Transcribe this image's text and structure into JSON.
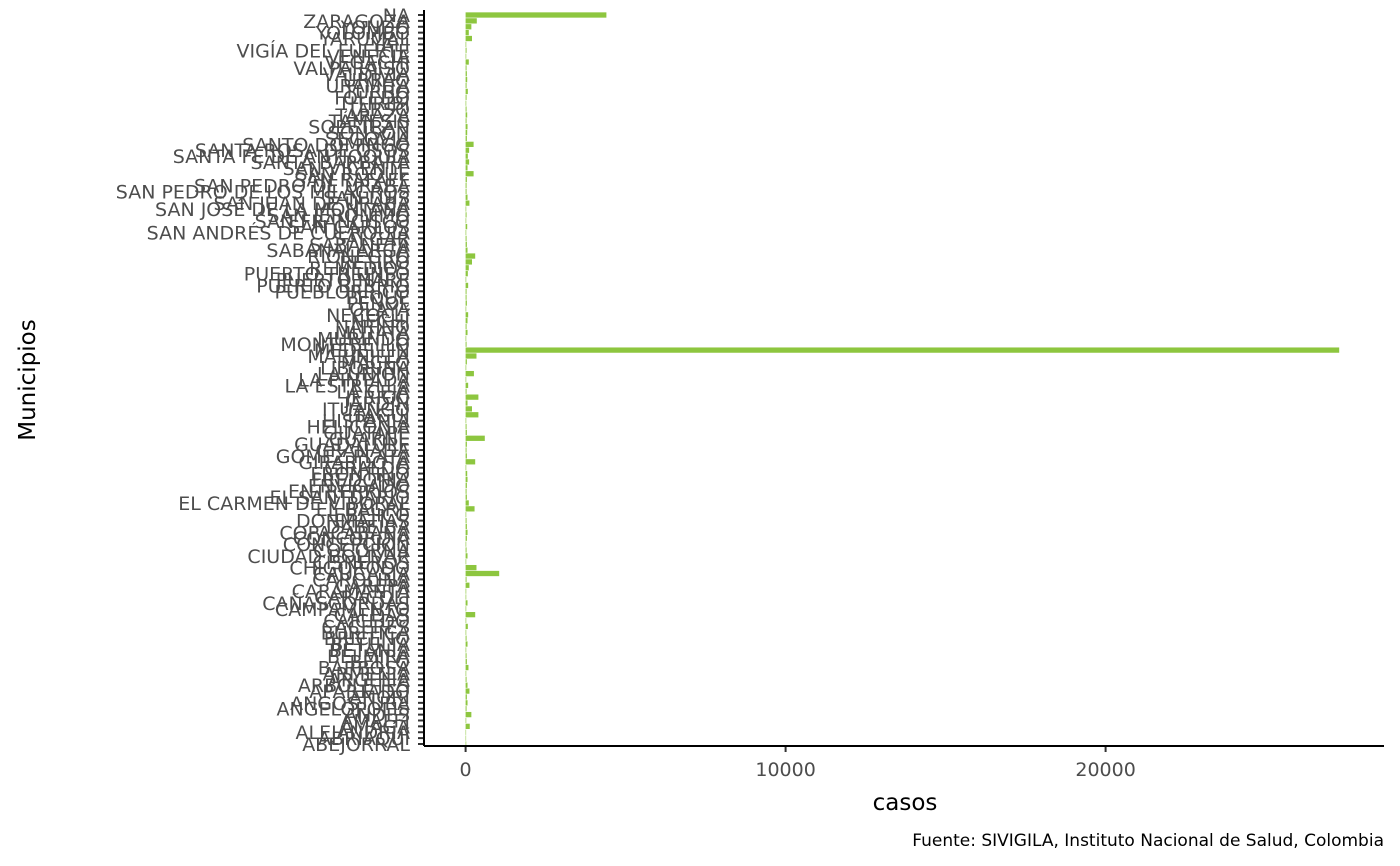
{
  "chart_data": {
    "type": "bar",
    "orientation": "horizontal",
    "xlabel": "casos",
    "ylabel": "Municipios",
    "caption": "Fuente: SIVIGILA, Instituto Nacional de Salud, Colombia",
    "xlim": [
      -1300,
      28700
    ],
    "x_ticks": [
      0,
      10000,
      20000
    ],
    "x_tick_labels": [
      "0",
      "10000",
      "20000"
    ],
    "grid": false,
    "legend": "none",
    "bar_color": "#8dc63f",
    "categories": [
      "ABEJORRAL",
      "ABRIAQUÍ",
      "ALEJANDRÍA",
      "AMAGÁ",
      "AMALFI",
      "ANDES",
      "ANGELÓPOLIS",
      "ANGOSTURA",
      "ANORÍ",
      "APARTADÓ",
      "ARBOLETES",
      "ARGELIA",
      "ARMENIA",
      "BARBOSA",
      "BELLO",
      "BELMIRA",
      "BETANIA",
      "BETULIA",
      "BRICEÑO",
      "BURITICÁ",
      "CÁCERES",
      "CAICEDO",
      "CALDAS",
      "CAMPAMENTO",
      "CAÑASGORDAS",
      "CARACOLÍ",
      "CARAMANTA",
      "CAREPA",
      "CAROLINA",
      "CAUCASIA",
      "CHIGORODÓ",
      "CISNEROS",
      "CIUDAD BOLÍVAR",
      "COCORNÁ",
      "CONCEPCIÓN",
      "CONCORDIA",
      "COPACABANA",
      "DABEIBA",
      "DONMATÍAS",
      "EBÉJICO",
      "EL BAGRE",
      "EL CARMEN DE VIBORAL",
      "EL SANTUARIO",
      "ENTRERRÍOS",
      "ENVIGADO",
      "FREDONIA",
      "FRONTINO",
      "GIRALDO",
      "GIRARDOTA",
      "GÓMEZ PLATA",
      "GRANADA",
      "GUADALUPE",
      "GUARNE",
      "GUATAPÉ",
      "HELICONIA",
      "HISPANIA",
      "ITAGÜÍ",
      "ITUANGO",
      "JARDÍN",
      "JERICÓ",
      "LA CEJA",
      "LA ESTRELLA",
      "LA PINTADA",
      "LA UNIÓN",
      "LIBORINA",
      "MACEO",
      "MARINILLA",
      "MEDELLÍN",
      "MONTEBELLO",
      "MURINDÓ",
      "MUTATÁ",
      "NARIÑO",
      "NECHÍ",
      "NECOCLÍ",
      "OLAYA",
      "PEÑOL",
      "PEQUE",
      "PUEBLORRICO",
      "PUERTO BERRÍO",
      "PUERTO NARE",
      "PUERTO TRIUNFO",
      "REMEDIOS",
      "RETIRO",
      "RIONEGRO",
      "SABANALARGA",
      "SABANETA",
      "SALGAR",
      "SAN ANDRÉS DE CUERQUÍA",
      "SAN CARLOS",
      "SAN FRANCISCO",
      "SAN JERÓNIMO",
      "SAN JOSÉ DE LA MONTAÑA",
      "SAN JUAN DE URABÁ",
      "SAN LUIS",
      "SAN PEDRO DE LOS MILAGROS",
      "SAN PEDRO DE URABÁ",
      "SAN RAFAEL",
      "SAN ROQUE",
      "SAN VICENTE",
      "SANTA BÁRBARA",
      "SANTA FE DE ANTIOQUIA",
      "SANTA ROSA DE OSOS",
      "SANTO DOMINGO",
      "SEGOVIA",
      "SONSÓN",
      "SOPETRÁN",
      "TÁMESIS",
      "TARAZÁ",
      "TARSO",
      "TITIRIBÍ",
      "TOLEDO",
      "TURBO",
      "URAMITA",
      "URRAO",
      "VALDIVIA",
      "VALPARAÍSO",
      "VEGACHÍ",
      "VENECIA",
      "VIGÍA DEL FUERTE",
      "YALÍ",
      "YARUMAL",
      "YOLOMBÓ",
      "YONDÓ",
      "ZARAGOZA",
      "NA"
    ],
    "values": [
      20,
      10,
      15,
      130,
      20,
      180,
      30,
      60,
      40,
      120,
      60,
      30,
      20,
      90,
      40,
      30,
      20,
      60,
      30,
      20,
      70,
      20,
      300,
      20,
      60,
      20,
      20,
      120,
      30,
      1050,
      340,
      20,
      60,
      30,
      20,
      40,
      60,
      40,
      30,
      20,
      280,
      100,
      40,
      30,
      40,
      60,
      50,
      20,
      300,
      40,
      30,
      40,
      600,
      40,
      30,
      20,
      400,
      200,
      60,
      400,
      30,
      80,
      20,
      260,
      20,
      40,
      340,
      27300,
      30,
      20,
      60,
      30,
      60,
      80,
      20,
      40,
      30,
      30,
      80,
      20,
      70,
      100,
      200,
      300,
      60,
      40,
      30,
      20,
      50,
      20,
      30,
      20,
      120,
      60,
      30,
      30,
      40,
      250,
      60,
      110,
      70,
      110,
      250,
      40,
      50,
      60,
      30,
      50,
      30,
      20,
      30,
      70,
      30,
      50,
      40,
      30,
      100,
      20,
      30,
      20,
      200,
      100,
      180,
      350,
      4400
    ]
  }
}
